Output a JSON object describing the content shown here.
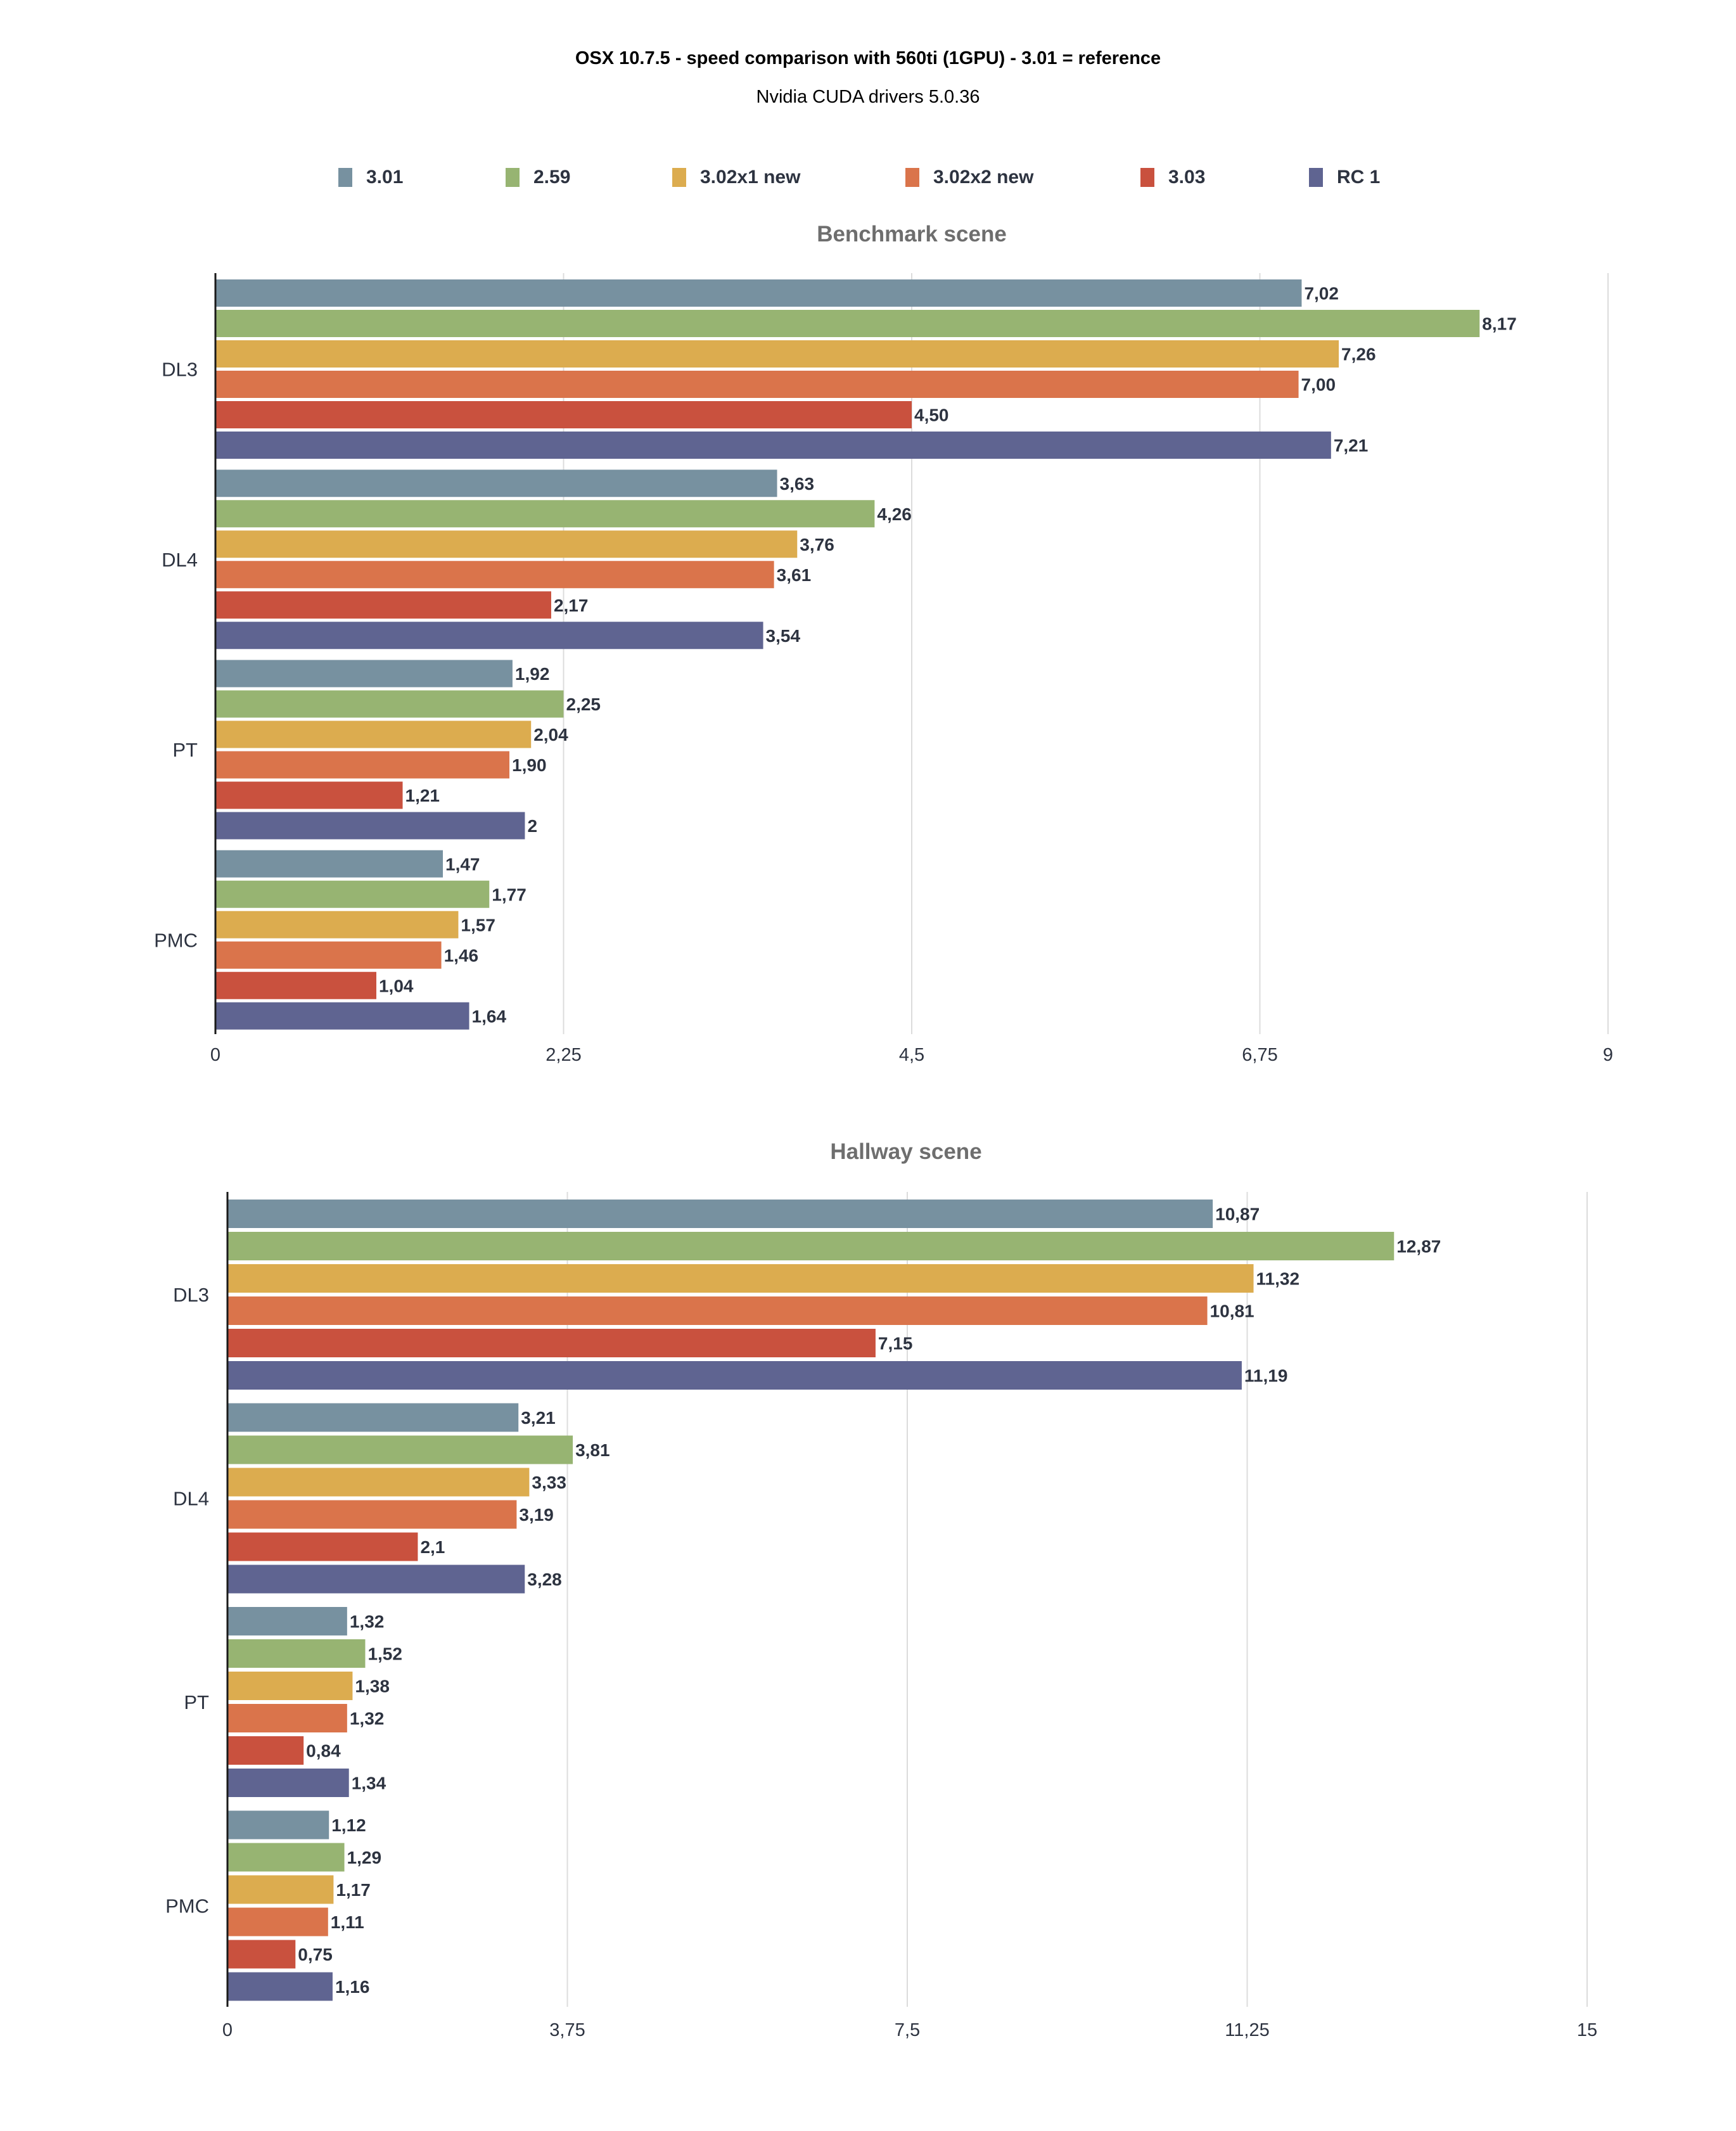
{
  "page": {
    "title": "OSX 10.7.5 - speed comparison  with 560ti (1GPU) - 3.01 = reference",
    "subtitle": "Nvidia CUDA drivers 5.0.36"
  },
  "legend": [
    {
      "label": "3.01",
      "color": "#7791a0"
    },
    {
      "label": "2.59",
      "color": "#97b472"
    },
    {
      "label": "3.02x1 new",
      "color": "#dcac4f"
    },
    {
      "label": "3.02x2 new",
      "color": "#da744b"
    },
    {
      "label": "3.03",
      "color": "#c9513e"
    },
    {
      "label": "RC 1",
      "color": "#5f6491"
    }
  ],
  "chart_data": [
    {
      "type": "bar",
      "orientation": "horizontal",
      "title": "Benchmark scene",
      "categories": [
        "DL3",
        "DL4",
        "PT",
        "PMC"
      ],
      "xlim": [
        0,
        9
      ],
      "ticks": [
        0,
        2.25,
        4.5,
        6.75,
        9
      ],
      "tick_labels": [
        "0",
        "2,25",
        "4,5",
        "6,75",
        "9"
      ],
      "grid": true,
      "legend_position": "top",
      "series": [
        {
          "name": "3.01",
          "values": [
            7.02,
            3.63,
            1.92,
            1.47
          ],
          "labels": [
            "7,02",
            "3,63",
            "1,92",
            "1,47"
          ]
        },
        {
          "name": "2.59",
          "values": [
            8.17,
            4.26,
            2.25,
            1.77
          ],
          "labels": [
            "8,17",
            "4,26",
            "2,25",
            "1,77"
          ]
        },
        {
          "name": "3.02x1 new",
          "values": [
            7.26,
            3.76,
            2.04,
            1.57
          ],
          "labels": [
            "7,26",
            "3,76",
            "2,04",
            "1,57"
          ]
        },
        {
          "name": "3.02x2 new",
          "values": [
            7.0,
            3.61,
            1.9,
            1.46
          ],
          "labels": [
            "7,00",
            "3,61",
            "1,90",
            "1,46"
          ]
        },
        {
          "name": "3.03",
          "values": [
            4.5,
            2.17,
            1.21,
            1.04
          ],
          "labels": [
            "4,50",
            "2,17",
            "1,21",
            "1,04"
          ]
        },
        {
          "name": "RC 1",
          "values": [
            7.21,
            3.54,
            2.0,
            1.64
          ],
          "labels": [
            "7,21",
            "3,54",
            "2",
            "1,64"
          ]
        }
      ]
    },
    {
      "type": "bar",
      "orientation": "horizontal",
      "title": "Hallway scene",
      "categories": [
        "DL3",
        "DL4",
        "PT",
        "PMC"
      ],
      "xlim": [
        0,
        15
      ],
      "ticks": [
        0,
        3.75,
        7.5,
        11.25,
        15
      ],
      "tick_labels": [
        "0",
        "3,75",
        "7,5",
        "11,25",
        "15"
      ],
      "grid": true,
      "legend_position": "top",
      "series": [
        {
          "name": "3.01",
          "values": [
            10.87,
            3.21,
            1.32,
            1.12
          ],
          "labels": [
            "10,87",
            "3,21",
            "1,32",
            "1,12"
          ]
        },
        {
          "name": "2.59",
          "values": [
            12.87,
            3.81,
            1.52,
            1.29
          ],
          "labels": [
            "12,87",
            "3,81",
            "1,52",
            "1,29"
          ]
        },
        {
          "name": "3.02x1 new",
          "values": [
            11.32,
            3.33,
            1.38,
            1.17
          ],
          "labels": [
            "11,32",
            "3,33",
            "1,38",
            "1,17"
          ]
        },
        {
          "name": "3.02x2 new",
          "values": [
            10.81,
            3.19,
            1.32,
            1.11
          ],
          "labels": [
            "10,81",
            "3,19",
            "1,32",
            "1,11"
          ]
        },
        {
          "name": "3.03",
          "values": [
            7.15,
            2.1,
            0.84,
            0.75
          ],
          "labels": [
            "7,15",
            "2,1",
            "0,84",
            "0,75"
          ]
        },
        {
          "name": "RC 1",
          "values": [
            11.19,
            3.28,
            1.34,
            1.16
          ],
          "labels": [
            "11,19",
            "3,28",
            "1,34",
            "1,16"
          ]
        }
      ]
    }
  ]
}
